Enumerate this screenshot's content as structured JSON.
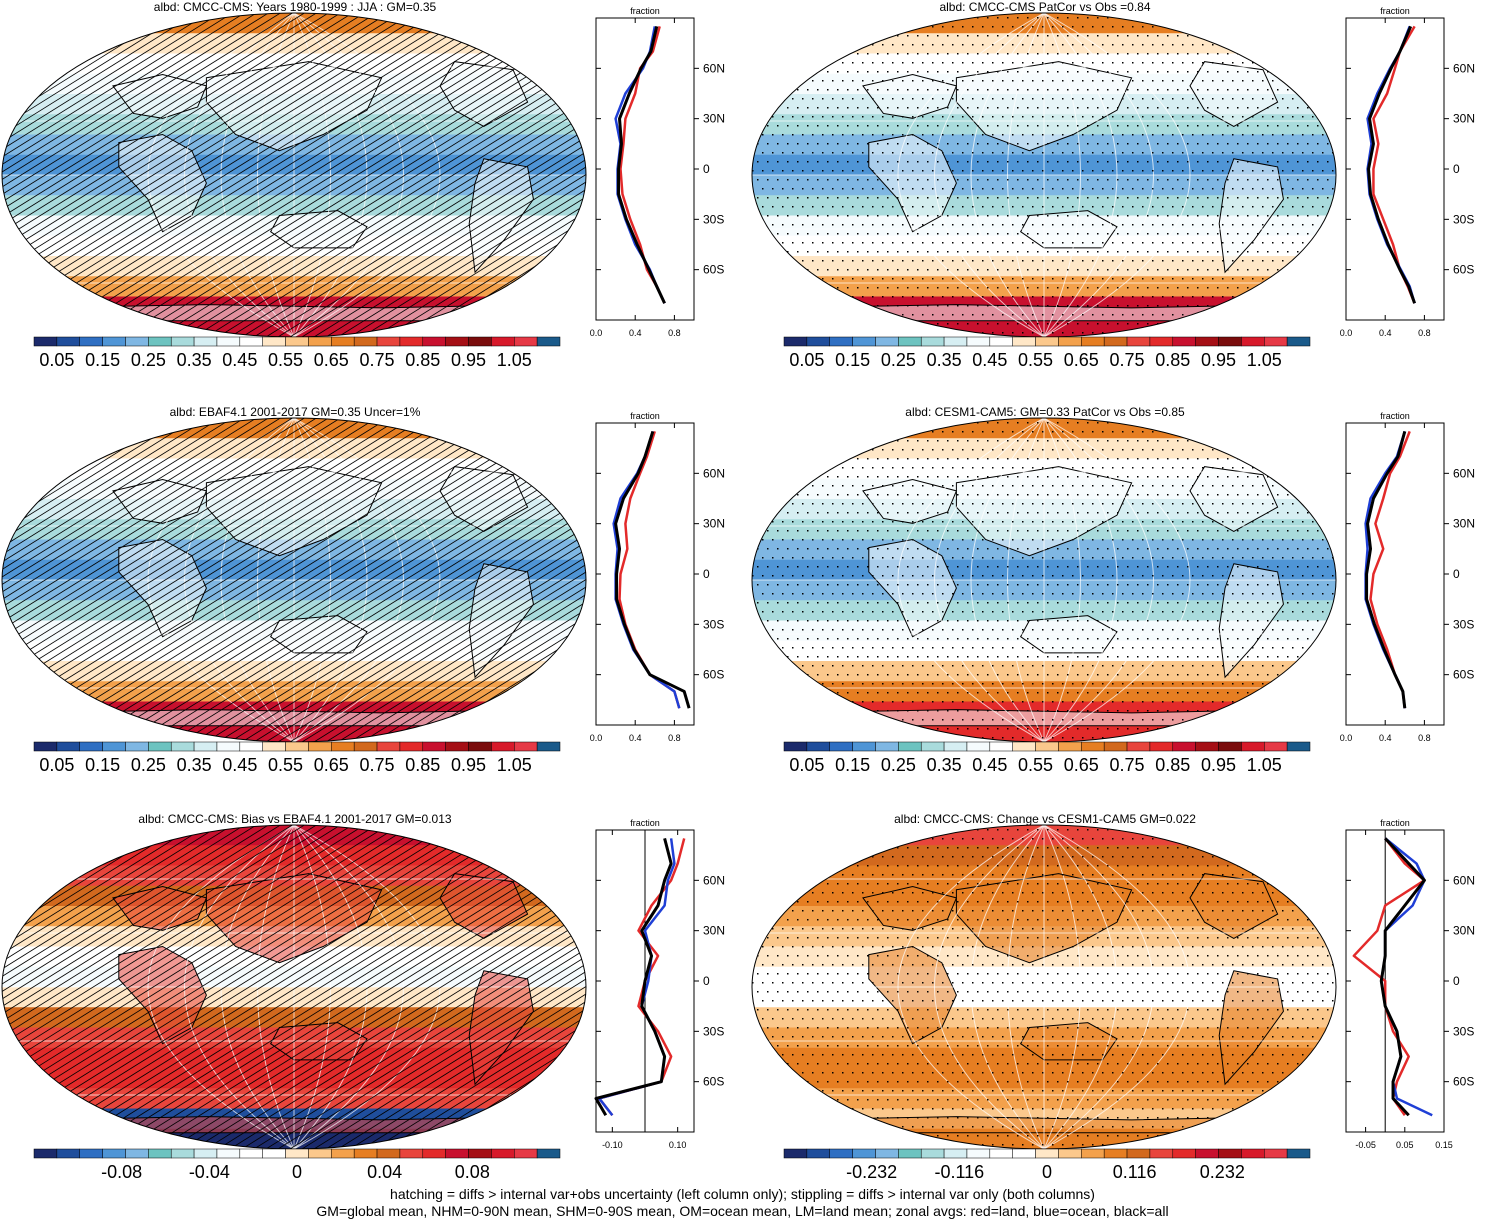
{
  "palette_abs": [
    "#1b2a6b",
    "#1f4e9c",
    "#2f6fc2",
    "#4f95d6",
    "#7fb7e3",
    "#6dc3c0",
    "#a9dbdc",
    "#d6eef2",
    "#f5fbfd",
    "#ffffff",
    "#ffe7c7",
    "#fbc88c",
    "#f3a14c",
    "#e67e22",
    "#d2691e",
    "#e8453c",
    "#e32a2a",
    "#c8102e",
    "#a50f15",
    "#7a0c0c",
    "#d7192a",
    "#e63946",
    "#1a5a8a"
  ],
  "palette_diff": [
    "#1b2a6b",
    "#1f4e9c",
    "#2f6fc2",
    "#4f95d6",
    "#7fb7e3",
    "#6dc3c0",
    "#a9dbdc",
    "#d6eef2",
    "#f5fbfd",
    "#ffffff",
    "#ffffff",
    "#ffe7c7",
    "#fbc88c",
    "#f3a14c",
    "#e67e22",
    "#d2691e",
    "#e8453c",
    "#e32a2a",
    "#c8102e",
    "#a50f15",
    "#d7192a",
    "#e63946",
    "#1a5a8a"
  ],
  "colors": {
    "land": "#e32a2a",
    "ocean": "#1f3fd6",
    "all": "#000000"
  },
  "chart_data": [
    {
      "type": "heatmap",
      "title": "albd: CMCC-CMS: Years 1980-1999 : JJA : GM=0.35",
      "colorbar_labels": [
        "0.05",
        "0.15",
        "0.25",
        "0.35",
        "0.45",
        "0.55",
        "0.65",
        "0.75",
        "0.85",
        "0.95",
        "1.05"
      ],
      "zonal": {
        "title": "fraction",
        "xlim": [
          0.0,
          1.0
        ],
        "xticks": [
          "0.0",
          "0.4",
          "0.8"
        ],
        "lat_labels": [
          "60N",
          "30N",
          "0",
          "30S",
          "60S"
        ],
        "ylim": [
          -90,
          90
        ],
        "lat": [
          85,
          70,
          60,
          45,
          30,
          15,
          0,
          -15,
          -30,
          -45,
          -60,
          -70,
          -80
        ],
        "series": [
          {
            "name": "land",
            "values": [
              0.65,
              0.58,
              0.45,
              0.4,
              0.3,
              0.28,
              0.25,
              0.27,
              0.35,
              0.45,
              0.52,
              0.62,
              0.7
            ]
          },
          {
            "name": "ocean",
            "values": [
              0.6,
              0.55,
              0.48,
              0.3,
              0.2,
              0.25,
              0.22,
              0.22,
              0.3,
              0.4,
              0.55,
              0.62,
              0.7
            ]
          },
          {
            "name": "all",
            "values": [
              0.62,
              0.56,
              0.46,
              0.34,
              0.24,
              0.26,
              0.23,
              0.23,
              0.31,
              0.42,
              0.54,
              0.62,
              0.7
            ]
          }
        ]
      }
    },
    {
      "type": "heatmap",
      "title": "albd: CMCC-CMS PatCor vs Obs =0.84",
      "colorbar_labels": [
        "0.05",
        "0.15",
        "0.25",
        "0.35",
        "0.45",
        "0.55",
        "0.65",
        "0.75",
        "0.85",
        "0.95",
        "1.05"
      ],
      "zonal": {
        "title": "fraction",
        "xlim": [
          0.0,
          1.0
        ],
        "xticks": [
          "0.0",
          "0.4",
          "0.8"
        ],
        "lat_labels": [
          "60N",
          "30N",
          "0",
          "30S",
          "60S"
        ],
        "ylim": [
          -90,
          90
        ],
        "lat": [
          85,
          70,
          60,
          45,
          30,
          15,
          0,
          -15,
          -30,
          -45,
          -60,
          -70,
          -80
        ],
        "series": [
          {
            "name": "land",
            "values": [
              0.7,
              0.55,
              0.5,
              0.42,
              0.28,
              0.33,
              0.28,
              0.28,
              0.38,
              0.48,
              0.55,
              0.63,
              0.7
            ]
          },
          {
            "name": "ocean",
            "values": [
              0.65,
              0.55,
              0.45,
              0.32,
              0.22,
              0.26,
              0.22,
              0.24,
              0.32,
              0.42,
              0.56,
              0.65,
              0.7
            ]
          },
          {
            "name": "all",
            "values": [
              0.66,
              0.55,
              0.46,
              0.34,
              0.24,
              0.28,
              0.23,
              0.25,
              0.33,
              0.43,
              0.55,
              0.64,
              0.7
            ]
          }
        ]
      }
    },
    {
      "type": "heatmap",
      "title": "albd: EBAF4.1 2001-2017 GM=0.35 Uncer=1%",
      "colorbar_labels": [
        "0.05",
        "0.15",
        "0.25",
        "0.35",
        "0.45",
        "0.55",
        "0.65",
        "0.75",
        "0.85",
        "0.95",
        "1.05"
      ],
      "zonal": {
        "title": "fraction",
        "xlim": [
          0.0,
          1.0
        ],
        "xticks": [
          "0.0",
          "0.4",
          "0.8"
        ],
        "lat_labels": [
          "60N",
          "30N",
          "0",
          "30S",
          "60S"
        ],
        "ylim": [
          -90,
          90
        ],
        "lat": [
          85,
          70,
          60,
          45,
          30,
          15,
          0,
          -15,
          -30,
          -45,
          -60,
          -70,
          -80
        ],
        "series": [
          {
            "name": "land",
            "values": [
              0.6,
              0.52,
              0.45,
              0.35,
              0.3,
              0.32,
              0.25,
              0.24,
              0.3,
              0.4,
              0.55,
              0.8,
              0.85
            ]
          },
          {
            "name": "ocean",
            "values": [
              0.58,
              0.5,
              0.42,
              0.25,
              0.18,
              0.22,
              0.2,
              0.2,
              0.28,
              0.38,
              0.55,
              0.8,
              0.85
            ]
          },
          {
            "name": "all",
            "values": [
              0.58,
              0.5,
              0.43,
              0.28,
              0.2,
              0.24,
              0.21,
              0.21,
              0.29,
              0.39,
              0.55,
              0.9,
              0.95
            ]
          }
        ]
      }
    },
    {
      "type": "heatmap",
      "title": "albd: CESM1-CAM5: GM=0.33 PatCor vs Obs =0.85",
      "colorbar_labels": [
        "0.05",
        "0.15",
        "0.25",
        "0.35",
        "0.45",
        "0.55",
        "0.65",
        "0.75",
        "0.85",
        "0.95",
        "1.05"
      ],
      "zonal": {
        "title": "fraction",
        "xlim": [
          0.0,
          1.0
        ],
        "xticks": [
          "0.0",
          "0.4",
          "0.8"
        ],
        "lat_labels": [
          "60N",
          "30N",
          "0",
          "30S",
          "60S"
        ],
        "ylim": [
          -90,
          90
        ],
        "lat": [
          85,
          70,
          60,
          45,
          30,
          15,
          0,
          -15,
          -30,
          -45,
          -60,
          -70,
          -80
        ],
        "series": [
          {
            "name": "land",
            "values": [
              0.65,
              0.55,
              0.45,
              0.38,
              0.3,
              0.38,
              0.28,
              0.25,
              0.32,
              0.42,
              0.5,
              0.58,
              0.6
            ]
          },
          {
            "name": "ocean",
            "values": [
              0.6,
              0.52,
              0.4,
              0.25,
              0.2,
              0.22,
              0.2,
              0.2,
              0.28,
              0.38,
              0.5,
              0.58,
              0.6
            ]
          },
          {
            "name": "all",
            "values": [
              0.6,
              0.53,
              0.42,
              0.28,
              0.22,
              0.25,
              0.21,
              0.21,
              0.29,
              0.39,
              0.5,
              0.58,
              0.6
            ]
          }
        ]
      }
    },
    {
      "type": "heatmap",
      "title": "albd: CMCC-CMS: Bias vs EBAF4.1 2001-2017 GM=0.013",
      "colorbar_labels": [
        "-0.08",
        "-0.04",
        "0",
        "0.04",
        "0.08"
      ],
      "zonal": {
        "title": "fraction",
        "xlim": [
          -0.15,
          0.15
        ],
        "xticks": [
          "-0.10",
          "0.10"
        ],
        "lat_labels": [
          "60N",
          "30N",
          "0",
          "30S",
          "60S"
        ],
        "ylim": [
          -90,
          90
        ],
        "lat": [
          85,
          70,
          60,
          45,
          30,
          15,
          0,
          -15,
          -30,
          -45,
          -60,
          -70,
          -80
        ],
        "series": [
          {
            "name": "land",
            "values": [
              0.12,
              0.1,
              0.08,
              0.02,
              -0.02,
              0.04,
              0.0,
              -0.02,
              0.04,
              0.08,
              0.05,
              -0.14,
              -0.1
            ]
          },
          {
            "name": "ocean",
            "values": [
              0.08,
              0.09,
              0.07,
              0.06,
              0.0,
              0.02,
              0.01,
              -0.01,
              0.03,
              0.06,
              0.05,
              -0.14,
              -0.1
            ]
          },
          {
            "name": "all",
            "values": [
              0.06,
              0.08,
              0.06,
              0.04,
              -0.01,
              0.02,
              0.0,
              -0.01,
              0.03,
              0.06,
              0.05,
              -0.15,
              -0.12
            ]
          }
        ]
      }
    },
    {
      "type": "heatmap",
      "title": "albd: CMCC-CMS: Change vs CESM1-CAM5 GM=0.022",
      "colorbar_labels": [
        "-0.232",
        "-0.116",
        "0",
        "0.116",
        "0.232"
      ],
      "zonal": {
        "title": "fraction",
        "xlim": [
          -0.1,
          0.15
        ],
        "xticks": [
          "-0.05",
          "0.05",
          "0.15"
        ],
        "lat_labels": [
          "60N",
          "30N",
          "0",
          "30S",
          "60S"
        ],
        "ylim": [
          -90,
          90
        ],
        "lat": [
          85,
          70,
          60,
          45,
          30,
          15,
          0,
          -15,
          -30,
          -45,
          -60,
          -70,
          -80
        ],
        "series": [
          {
            "name": "land",
            "values": [
              0.0,
              0.05,
              0.1,
              0.0,
              -0.02,
              -0.08,
              0.0,
              0.0,
              0.02,
              0.06,
              0.03,
              0.02,
              0.05
            ]
          },
          {
            "name": "ocean",
            "values": [
              0.0,
              0.08,
              0.1,
              0.07,
              0.0,
              0.0,
              -0.01,
              0.0,
              0.03,
              0.04,
              0.02,
              0.03,
              0.12
            ]
          },
          {
            "name": "all",
            "values": [
              0.0,
              0.06,
              0.1,
              0.05,
              0.0,
              0.0,
              -0.01,
              0.0,
              0.03,
              0.04,
              0.02,
              0.02,
              0.06
            ]
          }
        ]
      }
    }
  ],
  "footer": {
    "line1": "hatching = diffs > internal var+obs uncertainty (left column only); stippling = diffs > internal var only (both columns)",
    "line2": "GM=global mean, NHM=0-90N mean, SHM=0-90S mean, OM=ocean mean, LM=land mean; zonal avgs: red=land, blue=ocean, black=all"
  }
}
